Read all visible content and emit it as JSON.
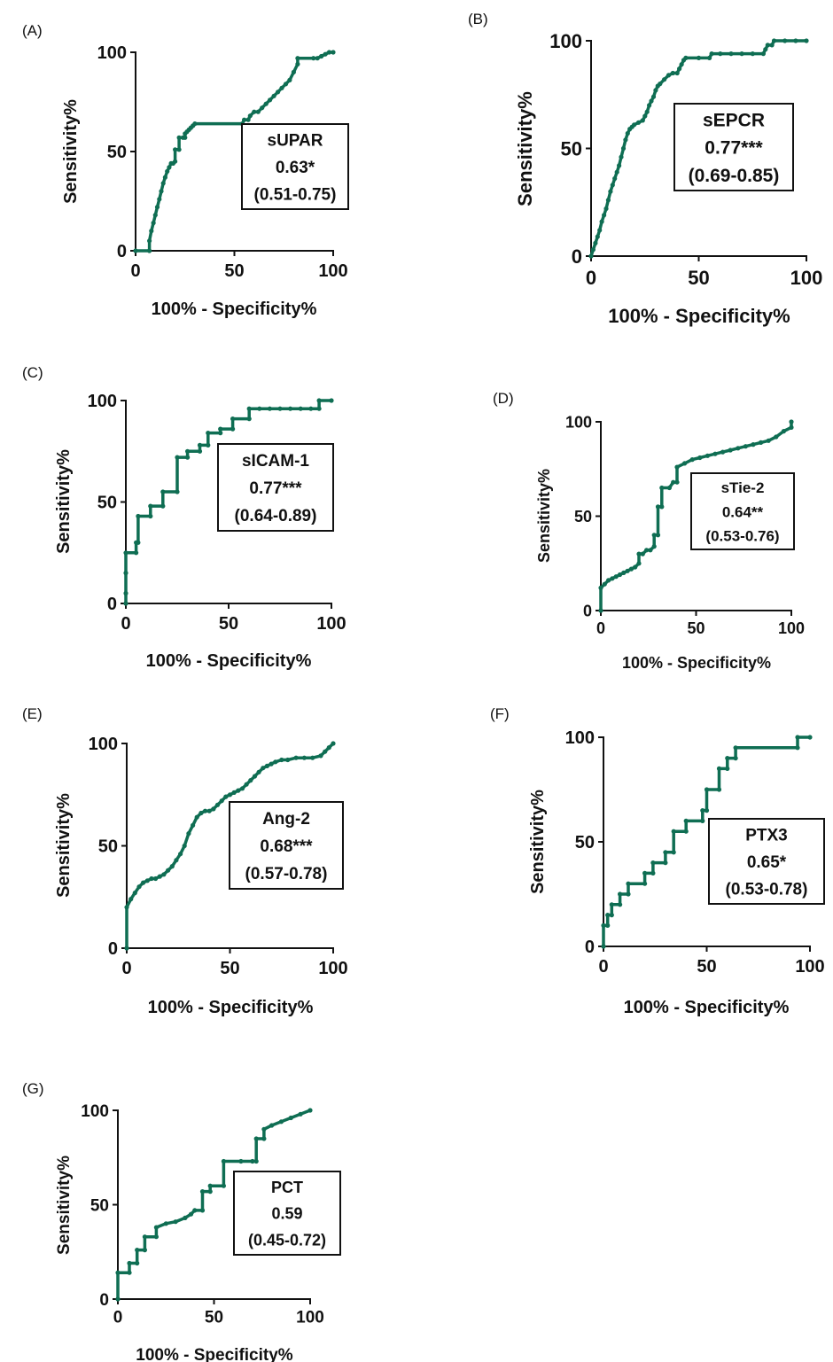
{
  "figure": {
    "curve_color": "#0f6e53",
    "axis_color": "#111111"
  },
  "chart_data": [
    {
      "type": "line",
      "panel": "(A)",
      "xlabel": "100% - Specificity%",
      "ylabel": "Sensitivity%",
      "xlim": [
        0,
        100
      ],
      "ylim": [
        0,
        100
      ],
      "xticks": [
        0,
        50,
        100
      ],
      "yticks": [
        0,
        50,
        100
      ],
      "grid": false,
      "legend": "center-right",
      "annotation": [
        "sUPAR",
        "0.63*",
        "(0.51-0.75)"
      ],
      "series": [
        {
          "x": [
            0,
            7,
            7,
            8,
            9,
            10,
            11,
            12,
            13,
            14,
            15,
            16,
            17,
            18,
            19,
            20,
            20,
            22,
            22,
            24,
            25,
            25,
            26,
            27,
            28,
            29,
            30,
            54,
            55,
            57,
            58,
            60,
            62,
            64,
            66,
            68,
            70,
            72,
            74,
            76,
            78,
            80,
            82,
            82,
            90,
            92,
            94,
            96,
            98,
            100
          ],
          "y": [
            0,
            0,
            5,
            10,
            14,
            18,
            22,
            26,
            30,
            34,
            37,
            40,
            42,
            44,
            44,
            45,
            51,
            51,
            57,
            57,
            57,
            59,
            60,
            61,
            62,
            63,
            64,
            64,
            66,
            66,
            68,
            70,
            70,
            72,
            74,
            76,
            78,
            80,
            82,
            84,
            86,
            90,
            94,
            97,
            97,
            97,
            98,
            99,
            100,
            100
          ]
        }
      ]
    },
    {
      "type": "line",
      "panel": "(B)",
      "xlabel": "100% - Specificity%",
      "ylabel": "Sensitivity%",
      "xlim": [
        0,
        100
      ],
      "ylim": [
        0,
        100
      ],
      "xticks": [
        0,
        50,
        100
      ],
      "yticks": [
        0,
        50,
        100
      ],
      "grid": false,
      "legend": "center-right",
      "annotation": [
        "sEPCR",
        "0.77***",
        "(0.69-0.85)"
      ],
      "series": [
        {
          "x": [
            0,
            1,
            2,
            3,
            4,
            5,
            6,
            7,
            8,
            9,
            10,
            11,
            12,
            13,
            14,
            15,
            16,
            17,
            18,
            19,
            20,
            22,
            24,
            25,
            26,
            27,
            28,
            29,
            30,
            31,
            32,
            34,
            36,
            38,
            40,
            41,
            42,
            43,
            44,
            50,
            55,
            56,
            60,
            65,
            70,
            75,
            80,
            81,
            82,
            84,
            85,
            90,
            95,
            100
          ],
          "y": [
            0,
            3,
            6,
            9,
            12,
            16,
            19,
            22,
            26,
            30,
            33,
            36,
            39,
            42,
            46,
            50,
            54,
            57,
            59,
            60,
            61,
            62,
            63,
            65,
            67,
            70,
            72,
            74,
            77,
            79,
            80,
            82,
            84,
            85,
            85,
            87,
            89,
            91,
            92,
            92,
            92,
            94,
            94,
            94,
            94,
            94,
            94,
            96,
            98,
            98,
            100,
            100,
            100,
            100
          ]
        }
      ]
    },
    {
      "type": "line",
      "panel": "(C)",
      "xlabel": "100% - Specificity%",
      "ylabel": "Sensitivity%",
      "xlim": [
        0,
        100
      ],
      "ylim": [
        0,
        100
      ],
      "xticks": [
        0,
        50,
        100
      ],
      "yticks": [
        0,
        50,
        100
      ],
      "grid": false,
      "legend": "center-right",
      "annotation": [
        "sICAM-1",
        "0.77***",
        "(0.64-0.89)"
      ],
      "series": [
        {
          "x": [
            0,
            0,
            0,
            0,
            5,
            5,
            6,
            6,
            12,
            12,
            18,
            18,
            25,
            25,
            30,
            30,
            36,
            36,
            40,
            40,
            46,
            46,
            52,
            52,
            60,
            60,
            65,
            70,
            75,
            80,
            85,
            90,
            94,
            94,
            100
          ],
          "y": [
            0,
            5,
            15,
            25,
            25,
            30,
            30,
            43,
            43,
            48,
            48,
            55,
            55,
            72,
            72,
            75,
            75,
            78,
            78,
            84,
            84,
            86,
            86,
            91,
            91,
            96,
            96,
            96,
            96,
            96,
            96,
            96,
            96,
            100,
            100
          ]
        }
      ]
    },
    {
      "type": "line",
      "panel": "(D)",
      "xlabel": "100% - Specificity%",
      "ylabel": "Sensitivity%",
      "xlim": [
        0,
        100
      ],
      "ylim": [
        0,
        100
      ],
      "xticks": [
        0,
        50,
        100
      ],
      "yticks": [
        0,
        50,
        100
      ],
      "grid": false,
      "legend": "center-right",
      "annotation": [
        "sTie-2",
        "0.64**",
        "(0.53-0.76)"
      ],
      "series": [
        {
          "x": [
            0,
            0,
            2,
            4,
            6,
            8,
            10,
            12,
            14,
            16,
            18,
            20,
            20,
            22,
            24,
            26,
            28,
            28,
            30,
            30,
            32,
            32,
            36,
            38,
            40,
            40,
            44,
            48,
            52,
            56,
            60,
            64,
            68,
            72,
            76,
            80,
            84,
            88,
            92,
            96,
            100,
            100
          ],
          "y": [
            0,
            12,
            14,
            16,
            17,
            18,
            19,
            20,
            21,
            22,
            23,
            25,
            30,
            30,
            32,
            32,
            34,
            40,
            40,
            55,
            55,
            65,
            65,
            68,
            68,
            76,
            78,
            80,
            81,
            82,
            83,
            84,
            85,
            86,
            87,
            88,
            89,
            90,
            92,
            95,
            97,
            100
          ]
        }
      ]
    },
    {
      "type": "line",
      "panel": "(E)",
      "xlabel": "100% - Specificity%",
      "ylabel": "Sensitivity%",
      "xlim": [
        0,
        100
      ],
      "ylim": [
        0,
        100
      ],
      "xticks": [
        0,
        50,
        100
      ],
      "yticks": [
        0,
        50,
        100
      ],
      "grid": false,
      "legend": "center-right",
      "annotation": [
        "Ang-2",
        "0.68***",
        "(0.57-0.78)"
      ],
      "series": [
        {
          "x": [
            0,
            0,
            2,
            4,
            6,
            8,
            10,
            12,
            14,
            16,
            18,
            20,
            22,
            24,
            26,
            28,
            30,
            32,
            34,
            36,
            38,
            40,
            42,
            44,
            46,
            48,
            50,
            52,
            54,
            56,
            58,
            60,
            62,
            64,
            66,
            68,
            70,
            72,
            75,
            78,
            82,
            86,
            90,
            94,
            96,
            98,
            100
          ],
          "y": [
            0,
            20,
            24,
            27,
            30,
            32,
            33,
            34,
            34,
            35,
            36,
            38,
            40,
            43,
            46,
            50,
            56,
            60,
            64,
            66,
            67,
            67,
            68,
            70,
            72,
            74,
            75,
            76,
            77,
            78,
            80,
            82,
            84,
            86,
            88,
            89,
            90,
            91,
            92,
            92,
            93,
            93,
            93,
            94,
            96,
            98,
            100
          ]
        }
      ]
    },
    {
      "type": "line",
      "panel": "(F)",
      "xlabel": "100% - Specificity%",
      "ylabel": "Sensitivity%",
      "xlim": [
        0,
        100
      ],
      "ylim": [
        0,
        100
      ],
      "xticks": [
        0,
        50,
        100
      ],
      "yticks": [
        0,
        50,
        100
      ],
      "grid": false,
      "legend": "center-right",
      "annotation": [
        "PTX3",
        "0.65*",
        "(0.53-0.78)"
      ],
      "series": [
        {
          "x": [
            0,
            0,
            2,
            2,
            4,
            4,
            8,
            8,
            12,
            12,
            20,
            20,
            24,
            24,
            30,
            30,
            34,
            34,
            40,
            40,
            48,
            48,
            50,
            50,
            56,
            56,
            60,
            60,
            64,
            64,
            94,
            94,
            100
          ],
          "y": [
            0,
            10,
            10,
            15,
            15,
            20,
            20,
            25,
            25,
            30,
            30,
            35,
            35,
            40,
            40,
            45,
            45,
            55,
            55,
            60,
            60,
            65,
            65,
            75,
            75,
            85,
            85,
            90,
            90,
            95,
            95,
            100,
            100
          ]
        }
      ]
    },
    {
      "type": "line",
      "panel": "(G)",
      "xlabel": "100% - Specificity%",
      "ylabel": "Sensitivity%",
      "xlim": [
        0,
        100
      ],
      "ylim": [
        0,
        100
      ],
      "xticks": [
        0,
        50,
        100
      ],
      "yticks": [
        0,
        50,
        100
      ],
      "grid": false,
      "legend": "center-right",
      "annotation": [
        "PCT",
        "0.59",
        "(0.45-0.72)"
      ],
      "series": [
        {
          "x": [
            0,
            0,
            6,
            6,
            10,
            10,
            14,
            14,
            20,
            20,
            25,
            30,
            35,
            38,
            40,
            44,
            44,
            48,
            48,
            55,
            55,
            64,
            70,
            72,
            72,
            76,
            76,
            80,
            85,
            90,
            95,
            100
          ],
          "y": [
            0,
            14,
            14,
            19,
            19,
            26,
            26,
            33,
            33,
            38,
            40,
            41,
            43,
            45,
            47,
            47,
            57,
            57,
            60,
            60,
            73,
            73,
            73,
            73,
            85,
            85,
            90,
            92,
            94,
            96,
            98,
            100
          ]
        }
      ]
    }
  ]
}
